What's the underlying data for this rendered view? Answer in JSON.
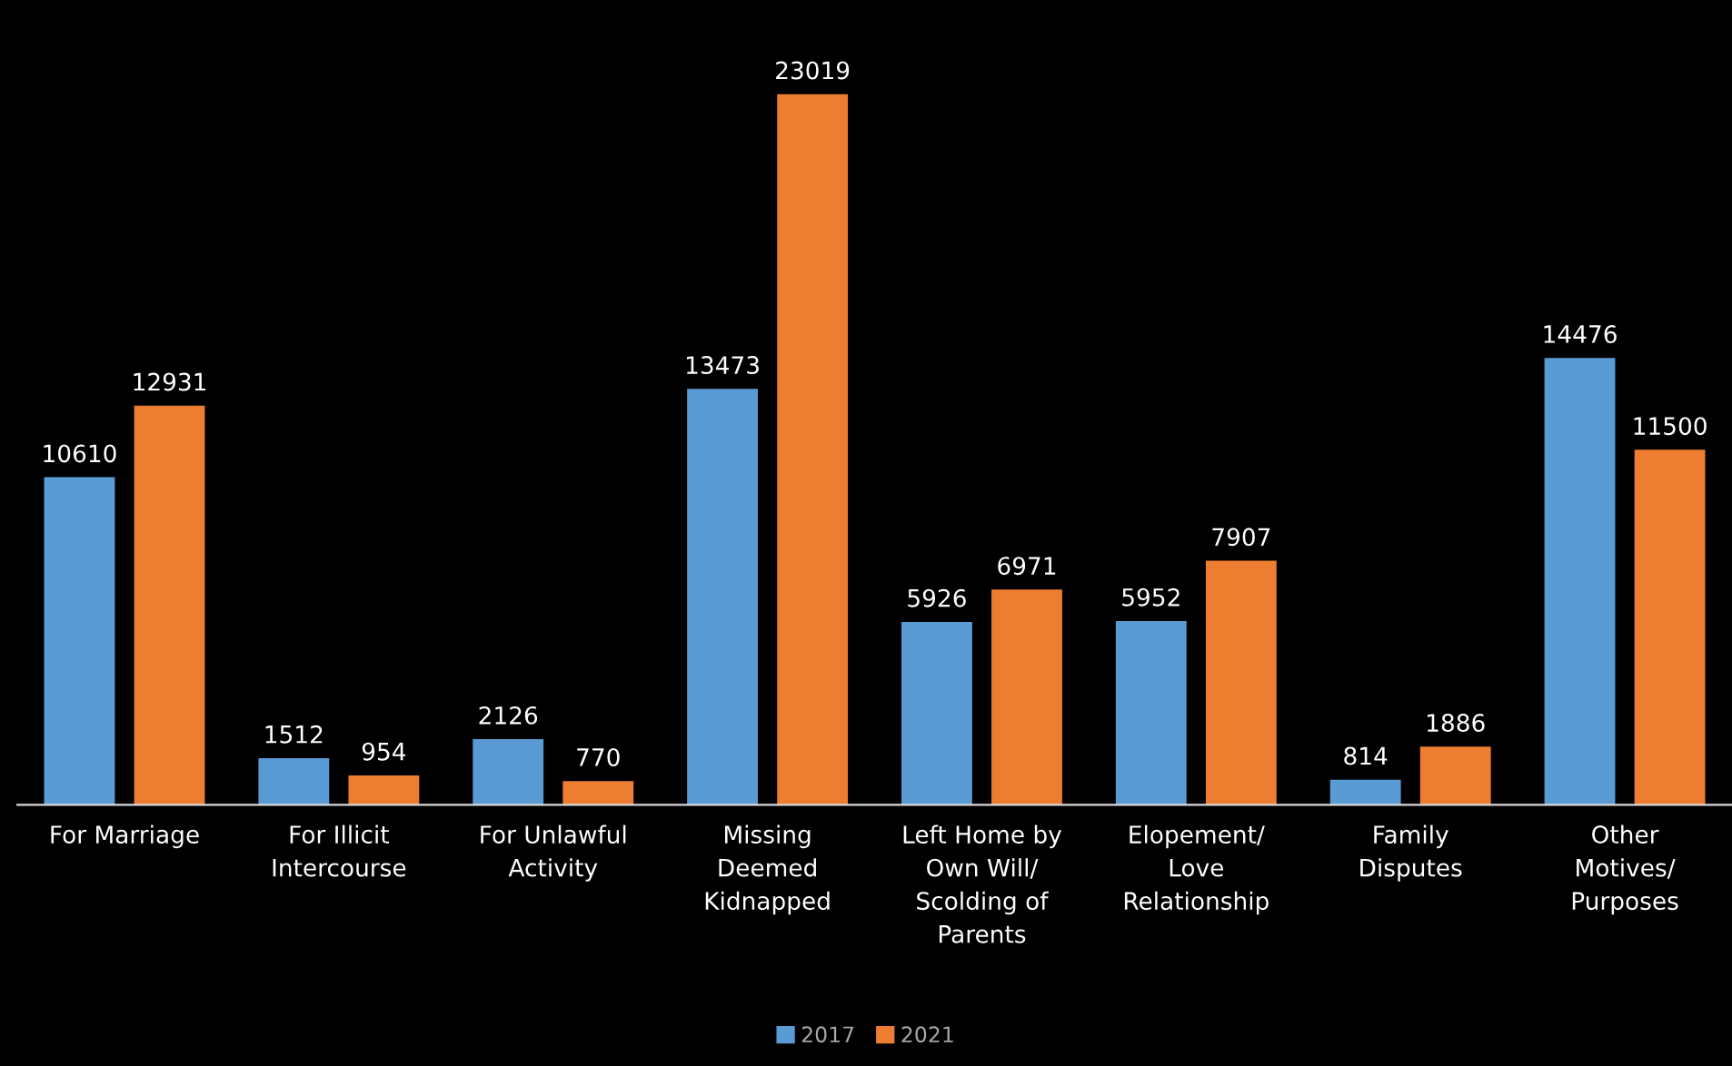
{
  "chart_data": {
    "type": "bar",
    "categories": [
      "For Marriage",
      "For Illicit\nIntercourse",
      "For Unlawful\nActivity",
      "Missing\nDeemed\nKidnapped",
      "Left Home by\nOwn Will/\nScolding of\nParents",
      "Elopement/\nLove\nRelationship",
      "Family\nDisputes",
      "Other\nMotives/\nPurposes"
    ],
    "series": [
      {
        "name": "2017",
        "color": "#5b9bd5",
        "values": [
          10610,
          1512,
          2126,
          13473,
          5926,
          5952,
          814,
          14476
        ]
      },
      {
        "name": "2021",
        "color": "#ed7d31",
        "values": [
          12931,
          954,
          770,
          23019,
          6971,
          7907,
          1886,
          11500
        ]
      }
    ],
    "data_labels": true,
    "legend": "bottom",
    "grid": false
  }
}
